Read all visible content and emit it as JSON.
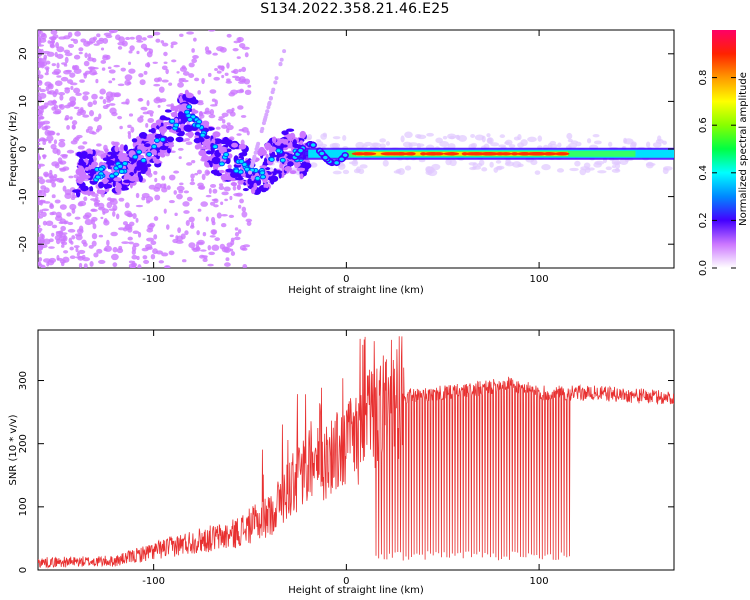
{
  "title": "S134.2022.358.21.46.E25",
  "chart_data": [
    {
      "type": "heatmap",
      "xlabel": "Height of straight line (km)",
      "ylabel": "Frequency (Hz)",
      "xlim": [
        -160,
        170
      ],
      "ylim": [
        -25,
        25
      ],
      "xticks": [
        -100,
        0,
        100
      ],
      "yticks": [
        -20,
        -10,
        0,
        10,
        20
      ],
      "colorbar": {
        "label": "Normalized spectral amplitude",
        "range": [
          0,
          1
        ],
        "ticks": [
          0.0,
          0.2,
          0.4,
          0.6,
          0.8
        ]
      },
      "ridge": [
        {
          "x": -130,
          "y": -5
        },
        {
          "x": -115,
          "y": -4
        },
        {
          "x": -100,
          "y": 0
        },
        {
          "x": -90,
          "y": 5
        },
        {
          "x": -82,
          "y": 8
        },
        {
          "x": -70,
          "y": 0
        },
        {
          "x": -60,
          "y": -3
        },
        {
          "x": -45,
          "y": -5
        },
        {
          "x": -30,
          "y": 0
        },
        {
          "x": -20,
          "y": -2
        },
        {
          "x": -10,
          "y": -1
        },
        {
          "x": 0,
          "y": -1
        },
        {
          "x": 50,
          "y": -1
        },
        {
          "x": 100,
          "y": -1
        },
        {
          "x": 170,
          "y": -1
        }
      ]
    },
    {
      "type": "line",
      "xlabel": "Height of straight line (km)",
      "ylabel": "SNR (10 * v/v)",
      "xlim": [
        -160,
        170
      ],
      "ylim": [
        0,
        380
      ],
      "xticks": [
        -100,
        0,
        100
      ],
      "yticks": [
        0,
        100,
        200,
        300
      ],
      "color": "#e83030",
      "envelope": [
        {
          "x": -160,
          "y": 12
        },
        {
          "x": -120,
          "y": 14
        },
        {
          "x": -100,
          "y": 30
        },
        {
          "x": -80,
          "y": 45
        },
        {
          "x": -60,
          "y": 55
        },
        {
          "x": -40,
          "y": 85
        },
        {
          "x": -30,
          "y": 130
        },
        {
          "x": -20,
          "y": 160
        },
        {
          "x": -10,
          "y": 175
        },
        {
          "x": 0,
          "y": 195
        },
        {
          "x": 10,
          "y": 225
        },
        {
          "x": 20,
          "y": 265
        },
        {
          "x": 30,
          "y": 275
        },
        {
          "x": 50,
          "y": 280
        },
        {
          "x": 70,
          "y": 287
        },
        {
          "x": 85,
          "y": 295
        },
        {
          "x": 100,
          "y": 280
        },
        {
          "x": 130,
          "y": 280
        },
        {
          "x": 170,
          "y": 272
        }
      ],
      "dips_start": 15,
      "dips_end": 116,
      "dip_floor": 15
    }
  ]
}
